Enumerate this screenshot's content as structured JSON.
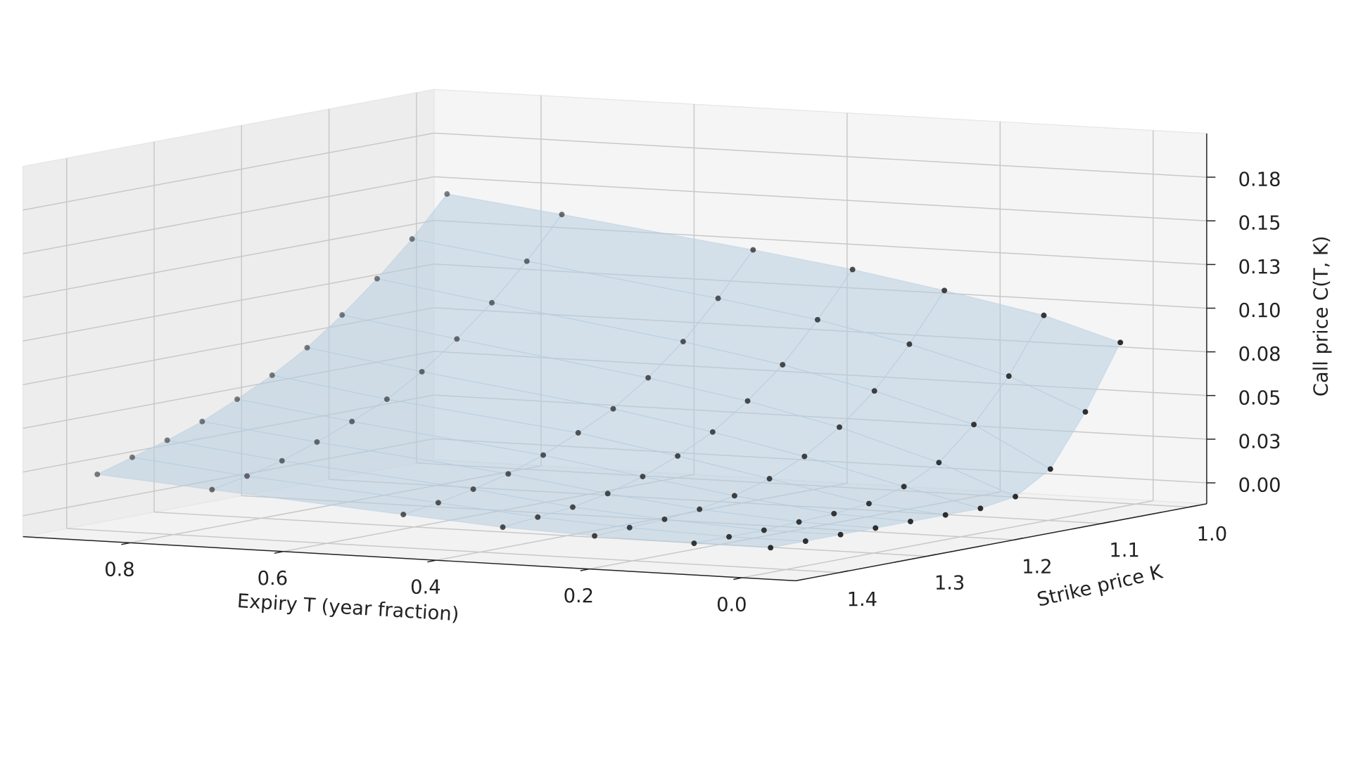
{
  "chart_data": {
    "type": "scatter3d",
    "xlabel": "Expiry T (year fraction)",
    "ylabel": "Strike price K",
    "zlabel": "Call price C(T, K)",
    "xlim": [
      -0.07,
      0.94
    ],
    "xticks": [
      {
        "value": 0,
        "label": "0.0"
      },
      0.2,
      0.4,
      0.6,
      0.8
    ],
    "ylim": [
      0.98,
      1.45
    ],
    "yticks": [
      {
        "value": 1,
        "label": "1.0"
      },
      1.1,
      1.2,
      1.3,
      1.4
    ],
    "zlim": [
      -0.012,
      0.2
    ],
    "zticks": [
      {
        "value": 0,
        "label": "0.00"
      },
      {
        "value": 0.025,
        "label": "0.03"
      },
      0.05,
      {
        "value": 0.075,
        "label": "0.08"
      },
      {
        "value": 0.1,
        "label": "0.10"
      },
      {
        "value": 0.125,
        "label": "0.13"
      },
      0.15,
      {
        "value": 0.175,
        "label": "0.18"
      }
    ],
    "grid": true,
    "color": "#222222",
    "surface_color": "#b7cde0",
    "strikes": [
      1.0,
      1.04,
      1.08,
      1.12,
      1.16,
      1.2,
      1.24,
      1.28,
      1.32,
      1.36,
      1.4
    ],
    "series": [
      {
        "expiry": 0.9,
        "values": [
          0.143,
          0.121,
          0.102,
          0.085,
          0.07,
          0.058,
          0.048,
          0.039,
          0.032,
          0.026,
          0.02
        ]
      },
      {
        "expiry": 0.75,
        "values": [
          0.135,
          0.112,
          0.092,
          0.075,
          0.06,
          0.048,
          0.039,
          0.031,
          0.024,
          0.019,
          0.015
        ]
      },
      {
        "expiry": 0.5,
        "values": [
          0.121,
          0.097,
          0.076,
          0.059,
          0.045,
          0.035,
          0.026,
          0.019,
          0.014,
          0.01,
          0.007
        ]
      },
      {
        "expiry": 0.37,
        "values": [
          0.113,
          0.088,
          0.066,
          0.049,
          0.035,
          0.025,
          0.017,
          0.011,
          0.007,
          0.005,
          0.003
        ]
      },
      {
        "expiry": 0.25,
        "values": [
          0.104,
          0.077,
          0.054,
          0.037,
          0.024,
          0.015,
          0.009,
          0.005,
          0.003,
          0.002,
          0.001
        ]
      },
      {
        "expiry": 0.12,
        "values": [
          0.093,
          0.062,
          0.038,
          0.02,
          0.01,
          0.004,
          0.002,
          0.001,
          0,
          0,
          0
        ]
      },
      {
        "expiry": 0.02,
        "values": [
          0.08,
          0.044,
          0.015,
          0.003,
          0,
          0,
          0,
          0,
          0,
          0,
          0
        ]
      }
    ]
  }
}
